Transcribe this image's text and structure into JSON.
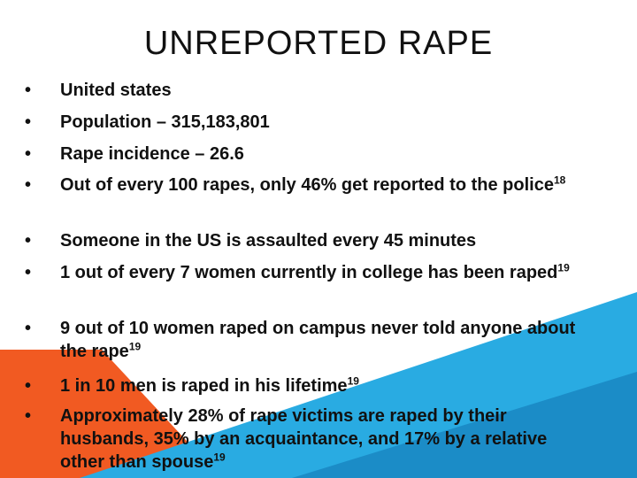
{
  "header": {
    "title": "UNREPORTED RAPE"
  },
  "bullets": [
    {
      "text": "United states"
    },
    {
      "text": "Population – 315,183,801"
    },
    {
      "text": "Rape incidence – 26.6"
    },
    {
      "text": "Out of every 100 rapes, only 46% get reported to the police",
      "sup": "18"
    },
    {
      "text": "Someone in the US is assaulted every 45 minutes"
    },
    {
      "text": "1 out of every 7 women currently in college has been raped",
      "sup": "19"
    },
    {
      "text": "9 out of 10 women raped on campus never told anyone about the rape",
      "sup": "19"
    },
    {
      "text": "1 in 10 men is raped in his lifetime",
      "sup": "19"
    },
    {
      "text": "Approximately 28% of rape victims are raped by their husbands, 35% by an acquaintance, and 17% by a relative other than spouse",
      "sup": "19"
    }
  ]
}
